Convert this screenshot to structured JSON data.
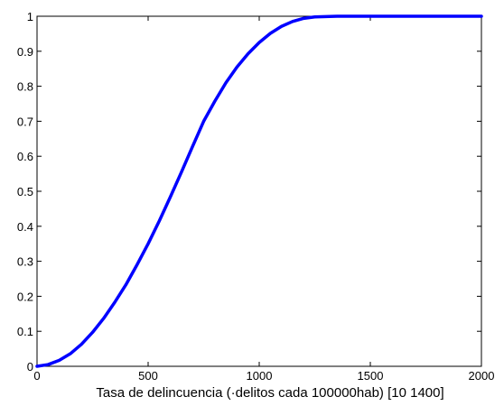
{
  "chart_data": {
    "type": "line",
    "title": "",
    "xlabel": "Tasa de delincuencia (·delitos cada 100000hab)  [10 1400]",
    "ylabel": "",
    "xlim": [
      0,
      2000
    ],
    "ylim": [
      0,
      1
    ],
    "grid": false,
    "xticks": [
      0,
      500,
      1000,
      1500,
      2000
    ],
    "yticks": [
      0,
      0.1,
      0.2,
      0.3,
      0.4,
      0.5,
      0.6,
      0.7,
      0.8,
      0.9,
      1
    ],
    "xtick_labels": [
      "0",
      "500",
      "1000",
      "1500",
      "2000"
    ],
    "ytick_labels": [
      "0",
      "0.1",
      "0.2",
      "0.3",
      "0.4",
      "0.5",
      "0.6",
      "0.7",
      "0.8",
      "0.9",
      "1"
    ],
    "series": [
      {
        "color": "#0000ff",
        "x": [
          0,
          50,
          100,
          150,
          200,
          250,
          300,
          350,
          400,
          450,
          500,
          550,
          600,
          650,
          700,
          750,
          800,
          850,
          900,
          950,
          1000,
          1050,
          1100,
          1150,
          1200,
          1250,
          1300,
          1350,
          1375,
          1400,
          1500,
          1600,
          1700,
          1800,
          1900,
          2000
        ],
        "y": [
          0,
          0.005,
          0.017,
          0.036,
          0.063,
          0.097,
          0.137,
          0.183,
          0.233,
          0.29,
          0.35,
          0.415,
          0.484,
          0.555,
          0.628,
          0.7,
          0.757,
          0.81,
          0.855,
          0.893,
          0.925,
          0.951,
          0.971,
          0.985,
          0.994,
          0.998,
          0.999,
          1,
          1,
          1,
          1,
          1,
          1,
          1,
          1,
          1
        ]
      }
    ]
  }
}
